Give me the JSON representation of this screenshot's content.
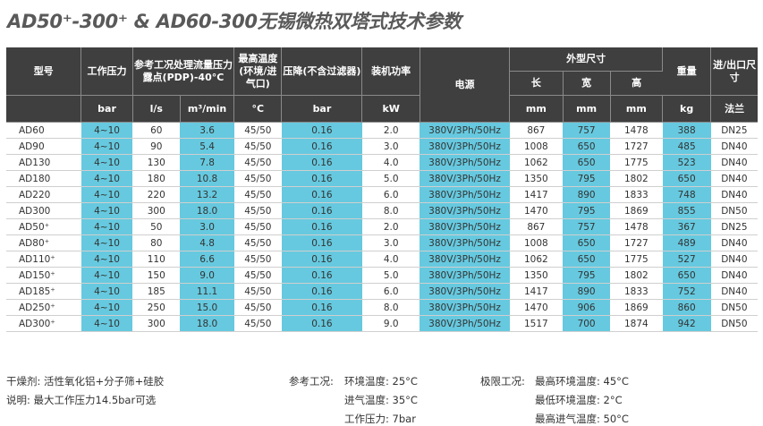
{
  "title": "AD50⁺-300⁺ & AD60-300无锡微热双塔式技术参数",
  "headers": {
    "model": "型号",
    "pressure": "工作压力",
    "flow_group": "参考工况处理流量压力露点(PDP)-40°C",
    "max_temp": "最高温度(环境/进气口)",
    "pressure_drop": "压降(不含过滤器)",
    "power": "装机功率",
    "supply": "电源",
    "dimensions": "外型尺寸",
    "weight": "重量",
    "port": "进/出口尺寸",
    "dim_length": "长",
    "dim_width": "宽",
    "dim_height": "高"
  },
  "units": {
    "pressure": "bar",
    "flow_ls": "l/s",
    "flow_m3": "m³/min",
    "temp": "°C",
    "drop": "bar",
    "power": "kW",
    "length": "mm",
    "width": "mm",
    "height": "mm",
    "weight": "kg",
    "port": "法兰"
  },
  "rows": [
    {
      "model": "AD60",
      "pressure": "4~10",
      "ls": "60",
      "m3": "3.6",
      "temp": "45/50",
      "drop": "0.16",
      "kw": "2.0",
      "supply": "380V/3Ph/50Hz",
      "l": "867",
      "w": "757",
      "h": "1478",
      "kg": "388",
      "port": "DN25"
    },
    {
      "model": "AD90",
      "pressure": "4~10",
      "ls": "90",
      "m3": "5.4",
      "temp": "45/50",
      "drop": "0.16",
      "kw": "3.0",
      "supply": "380V/3Ph/50Hz",
      "l": "1008",
      "w": "650",
      "h": "1727",
      "kg": "485",
      "port": "DN40"
    },
    {
      "model": "AD130",
      "pressure": "4~10",
      "ls": "130",
      "m3": "7.8",
      "temp": "45/50",
      "drop": "0.16",
      "kw": "4.0",
      "supply": "380V/3Ph/50Hz",
      "l": "1062",
      "w": "650",
      "h": "1775",
      "kg": "523",
      "port": "DN40"
    },
    {
      "model": "AD180",
      "pressure": "4~10",
      "ls": "180",
      "m3": "10.8",
      "temp": "45/50",
      "drop": "0.16",
      "kw": "5.0",
      "supply": "380V/3Ph/50Hz",
      "l": "1350",
      "w": "795",
      "h": "1802",
      "kg": "650",
      "port": "DN40"
    },
    {
      "model": "AD220",
      "pressure": "4~10",
      "ls": "220",
      "m3": "13.2",
      "temp": "45/50",
      "drop": "0.16",
      "kw": "6.0",
      "supply": "380V/3Ph/50Hz",
      "l": "1417",
      "w": "890",
      "h": "1833",
      "kg": "748",
      "port": "DN40"
    },
    {
      "model": "AD300",
      "pressure": "4~10",
      "ls": "300",
      "m3": "18.0",
      "temp": "45/50",
      "drop": "0.16",
      "kw": "8.0",
      "supply": "380V/3Ph/50Hz",
      "l": "1470",
      "w": "795",
      "h": "1869",
      "kg": "855",
      "port": "DN50"
    },
    {
      "model": "AD50⁺",
      "pressure": "4~10",
      "ls": "50",
      "m3": "3.0",
      "temp": "45/50",
      "drop": "0.16",
      "kw": "2.0",
      "supply": "380V/3Ph/50Hz",
      "l": "867",
      "w": "757",
      "h": "1478",
      "kg": "367",
      "port": "DN25"
    },
    {
      "model": "AD80⁺",
      "pressure": "4~10",
      "ls": "80",
      "m3": "4.8",
      "temp": "45/50",
      "drop": "0.16",
      "kw": "3.0",
      "supply": "380V/3Ph/50Hz",
      "l": "1008",
      "w": "650",
      "h": "1727",
      "kg": "489",
      "port": "DN40"
    },
    {
      "model": "AD110⁺",
      "pressure": "4~10",
      "ls": "110",
      "m3": "6.6",
      "temp": "45/50",
      "drop": "0.16",
      "kw": "4.0",
      "supply": "380V/3Ph/50Hz",
      "l": "1062",
      "w": "650",
      "h": "1775",
      "kg": "527",
      "port": "DN40"
    },
    {
      "model": "AD150⁺",
      "pressure": "4~10",
      "ls": "150",
      "m3": "9.0",
      "temp": "45/50",
      "drop": "0.16",
      "kw": "5.0",
      "supply": "380V/3Ph/50Hz",
      "l": "1350",
      "w": "795",
      "h": "1802",
      "kg": "650",
      "port": "DN40"
    },
    {
      "model": "AD185⁺",
      "pressure": "4~10",
      "ls": "185",
      "m3": "11.1",
      "temp": "45/50",
      "drop": "0.16",
      "kw": "6.0",
      "supply": "380V/3Ph/50Hz",
      "l": "1417",
      "w": "890",
      "h": "1833",
      "kg": "752",
      "port": "DN40"
    },
    {
      "model": "AD250⁺",
      "pressure": "4~10",
      "ls": "250",
      "m3": "15.0",
      "temp": "45/50",
      "drop": "0.16",
      "kw": "8.0",
      "supply": "380V/3Ph/50Hz",
      "l": "1470",
      "w": "906",
      "h": "1869",
      "kg": "860",
      "port": "DN50"
    },
    {
      "model": "AD300⁺",
      "pressure": "4~10",
      "ls": "300",
      "m3": "18.0",
      "temp": "45/50",
      "drop": "0.16",
      "kw": "9.0",
      "supply": "380V/3Ph/50Hz",
      "l": "1517",
      "w": "700",
      "h": "1874",
      "kg": "942",
      "port": "DN50"
    }
  ],
  "footer": {
    "desiccant": "干燥剂: 活性氧化铝+分子筛+硅胶",
    "note": "说明: 最大工作压力14.5bar可选",
    "ref_label": "参考工况:",
    "ref_items": [
      "环境温度: 25°C",
      "进气温度: 35°C",
      "工作压力: 7bar"
    ],
    "limit_label": "极限工况:",
    "limit_items": [
      "最高环境温度: 45°C",
      "最低环境温度: 2°C",
      "最高进气温度: 50°C"
    ]
  },
  "colors": {
    "header_bg": "#3f3f3f",
    "highlight": "#66c9df",
    "title": "#595959"
  }
}
